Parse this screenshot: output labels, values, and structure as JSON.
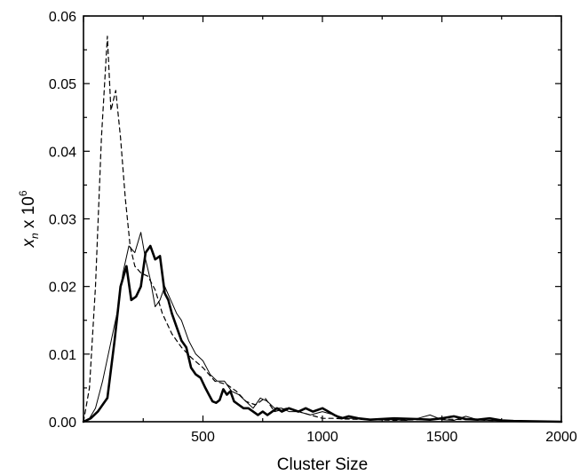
{
  "chart_data": {
    "type": "line",
    "title": "",
    "xlabel": "Cluster Size",
    "ylabel": {
      "var": "x",
      "sub": "n",
      "mid": " x 10",
      "sup": "6"
    },
    "xlim": [
      0,
      2000
    ],
    "ylim": [
      0,
      0.06
    ],
    "xticks": [
      500,
      1000,
      1500,
      2000
    ],
    "xtick_labels": [
      "500",
      "1000",
      "1500",
      "2000"
    ],
    "yticks": [
      0,
      0.01,
      0.02,
      0.03,
      0.04,
      0.05,
      0.06
    ],
    "ytick_labels": [
      "0.00",
      "0.01",
      "0.02",
      "0.03",
      "0.04",
      "0.05",
      "0.06"
    ],
    "grid": false,
    "legend": null,
    "series": [
      {
        "style": "dashed",
        "color": "#000000",
        "x": [
          0,
          25,
          50,
          75,
          100,
          115,
          135,
          155,
          175,
          195,
          215,
          240,
          270,
          300,
          330,
          370,
          410,
          450,
          500,
          550,
          600,
          640,
          680,
          720,
          760,
          800,
          850,
          900,
          950,
          1000,
          1050,
          1100,
          1200,
          1300,
          1400,
          1500,
          1600,
          1700,
          1800,
          2000
        ],
        "y": [
          0.0,
          0.005,
          0.02,
          0.042,
          0.057,
          0.046,
          0.049,
          0.042,
          0.033,
          0.026,
          0.023,
          0.022,
          0.0215,
          0.0195,
          0.016,
          0.013,
          0.011,
          0.0095,
          0.008,
          0.006,
          0.0055,
          0.0045,
          0.003,
          0.0025,
          0.0035,
          0.0015,
          0.002,
          0.0015,
          0.001,
          0.0005,
          0.0005,
          0.0004,
          0.0003,
          0.0002,
          0.0003,
          0.0004,
          0.0003,
          0.0002,
          0.0001,
          0.0
        ]
      },
      {
        "style": "thin-solid",
        "color": "#000000",
        "x": [
          0,
          25,
          50,
          80,
          110,
          140,
          165,
          190,
          215,
          240,
          260,
          280,
          300,
          320,
          340,
          365,
          390,
          410,
          440,
          470,
          500,
          530,
          560,
          590,
          620,
          650,
          680,
          710,
          740,
          770,
          800,
          830,
          860,
          900,
          950,
          1000,
          1050,
          1100,
          1150,
          1200,
          1300,
          1350,
          1400,
          1450,
          1500,
          1550,
          1600,
          1650,
          1700,
          1800,
          1900,
          2000
        ],
        "y": [
          0.0,
          0.0005,
          0.002,
          0.006,
          0.011,
          0.016,
          0.022,
          0.026,
          0.025,
          0.028,
          0.024,
          0.021,
          0.017,
          0.018,
          0.02,
          0.018,
          0.016,
          0.015,
          0.012,
          0.01,
          0.009,
          0.007,
          0.006,
          0.006,
          0.0045,
          0.004,
          0.003,
          0.002,
          0.0035,
          0.003,
          0.002,
          0.002,
          0.0015,
          0.0015,
          0.001,
          0.0015,
          0.001,
          0.0005,
          0.0005,
          0.0003,
          0.0003,
          0.0002,
          0.0005,
          0.001,
          0.0003,
          0.0002,
          0.0008,
          0.0003,
          0.0002,
          0.0001,
          0.0001,
          0.0
        ]
      },
      {
        "style": "thick-solid",
        "color": "#000000",
        "x": [
          0,
          30,
          60,
          100,
          130,
          155,
          180,
          200,
          220,
          240,
          260,
          280,
          300,
          320,
          340,
          355,
          370,
          390,
          410,
          430,
          450,
          470,
          490,
          510,
          525,
          540,
          555,
          570,
          585,
          600,
          615,
          630,
          650,
          670,
          690,
          710,
          730,
          750,
          770,
          790,
          810,
          830,
          860,
          900,
          930,
          960,
          1000,
          1050,
          1080,
          1110,
          1150,
          1200,
          1300,
          1400,
          1450,
          1500,
          1550,
          1600,
          1650,
          1700,
          1750,
          1800,
          2000
        ],
        "y": [
          0.0,
          0.0005,
          0.0015,
          0.0035,
          0.012,
          0.02,
          0.023,
          0.018,
          0.0185,
          0.02,
          0.025,
          0.026,
          0.024,
          0.0245,
          0.019,
          0.018,
          0.016,
          0.014,
          0.012,
          0.011,
          0.008,
          0.007,
          0.0065,
          0.005,
          0.004,
          0.003,
          0.0028,
          0.0032,
          0.0048,
          0.004,
          0.0045,
          0.003,
          0.0025,
          0.002,
          0.002,
          0.0015,
          0.001,
          0.0015,
          0.001,
          0.0015,
          0.002,
          0.0015,
          0.002,
          0.0015,
          0.002,
          0.0015,
          0.002,
          0.001,
          0.0005,
          0.0008,
          0.0005,
          0.0003,
          0.0005,
          0.0004,
          0.0003,
          0.0005,
          0.0008,
          0.0004,
          0.0003,
          0.0005,
          0.0002,
          0.0001,
          0.0
        ]
      }
    ]
  }
}
